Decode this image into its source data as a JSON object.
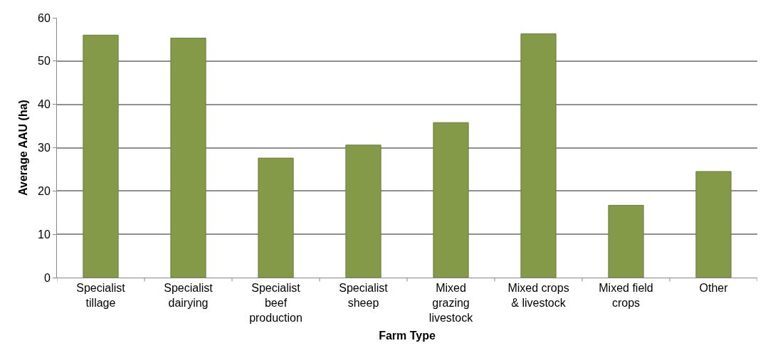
{
  "chart_data": {
    "type": "bar",
    "xlabel": "Farm Type",
    "ylabel": "Average AAU (ha)",
    "categories": [
      "Specialist\ntillage",
      "Specialist\ndairying",
      "Specialist\nbeef\nproduction",
      "Specialist\nsheep",
      "Mixed\ngrazing\nlivestock",
      "Mixed crops\n& livestock",
      "Mixed field\ncrops",
      "Other"
    ],
    "values": [
      56,
      55.3,
      27.6,
      30.6,
      35.8,
      56.3,
      16.7,
      24.5
    ],
    "color": "#859a48",
    "ylim": [
      0,
      60
    ],
    "yticks": [
      0,
      10,
      20,
      30,
      40,
      50,
      60
    ],
    "grid": "y"
  }
}
